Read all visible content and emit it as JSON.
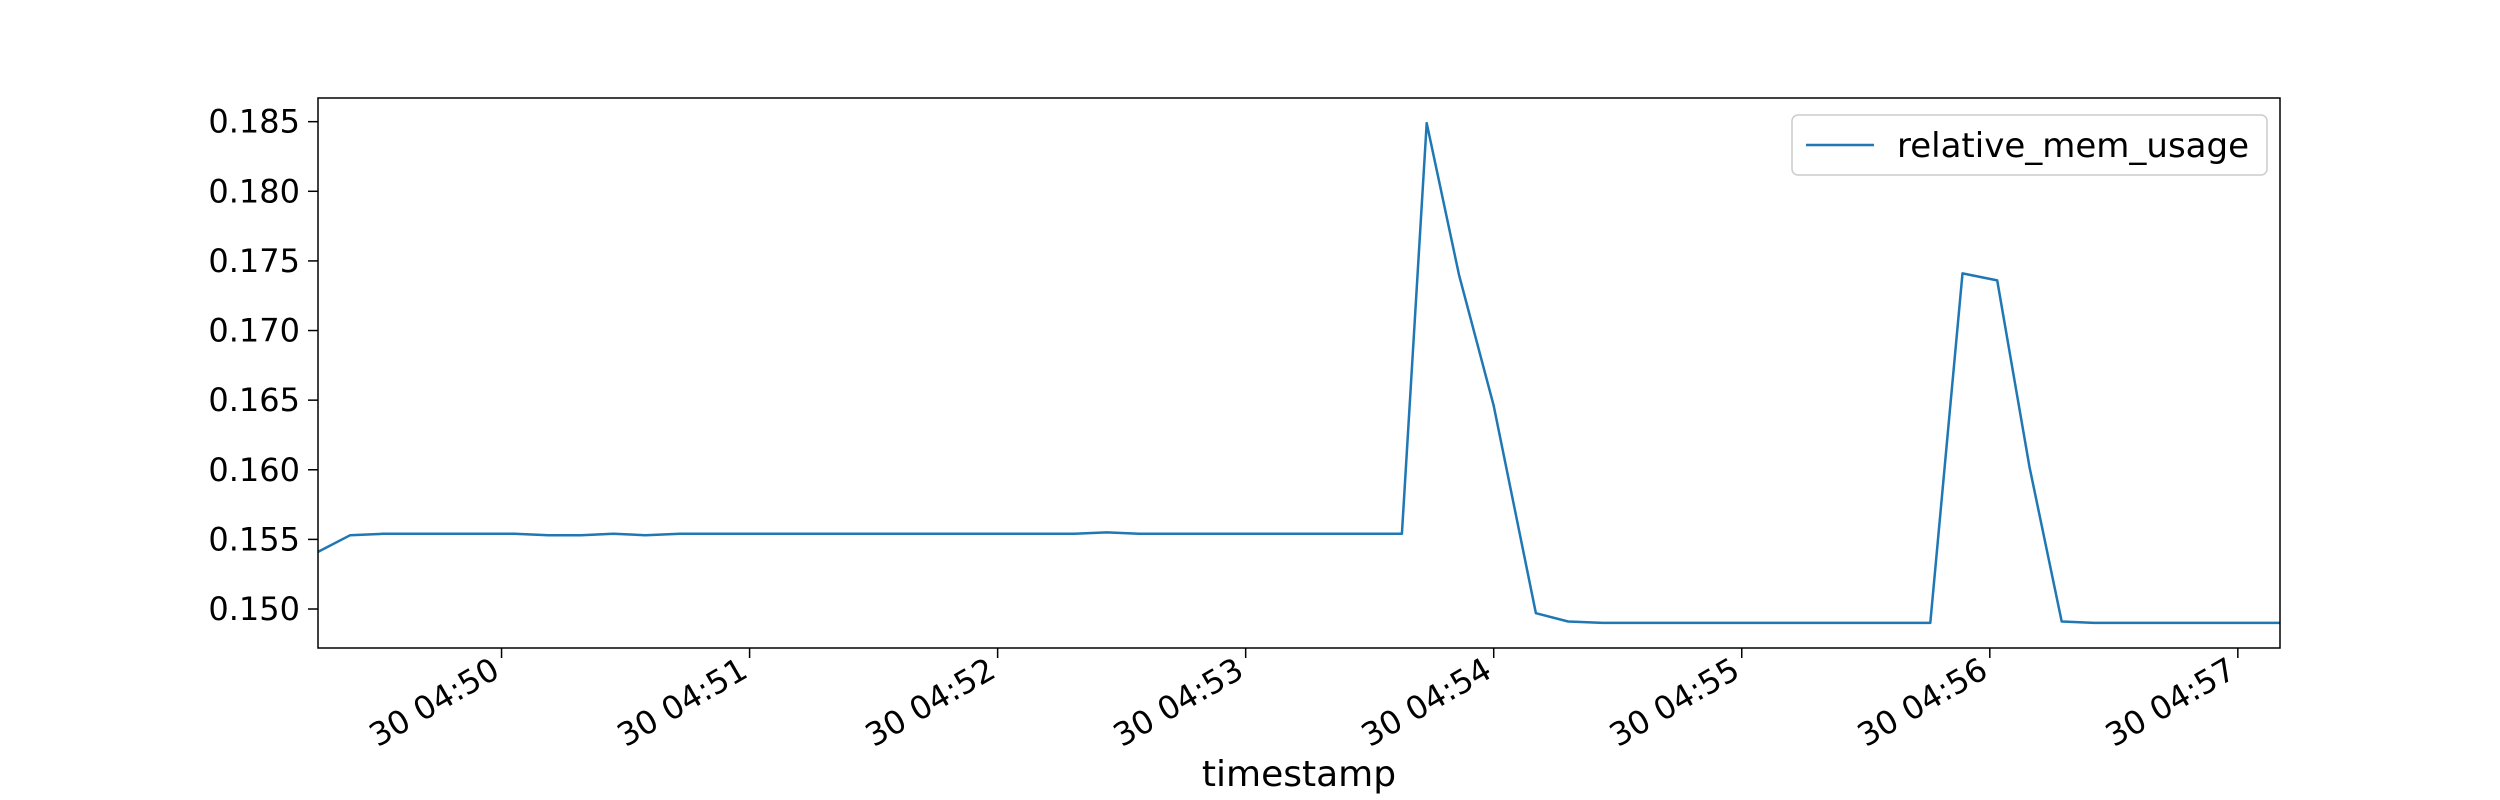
{
  "chart_data": {
    "type": "line",
    "title": "",
    "xlabel": "timestamp",
    "ylabel": "",
    "grid": false,
    "legend_placement": "top-right",
    "x_tick_values": [
      1,
      2,
      3,
      4,
      5,
      6,
      7,
      8
    ],
    "x_tick_labels": [
      "30 04:50",
      "30 04:51",
      "30 04:52",
      "30 04:53",
      "30 04:54",
      "30 04:55",
      "30 04:56",
      "30 04:57"
    ],
    "y_tick_values": [
      0.15,
      0.155,
      0.16,
      0.165,
      0.17,
      0.175,
      0.18,
      0.185
    ],
    "y_tick_labels": [
      "0.150",
      "0.155",
      "0.160",
      "0.165",
      "0.170",
      "0.175",
      "0.180",
      "0.185"
    ],
    "xlim": [
      0.26,
      8.17
    ],
    "ylim": [
      0.1472,
      0.1867
    ],
    "series": [
      {
        "name": "relative_mem_usage",
        "color": "#1f77b4",
        "x": [
          0.26,
          0.39,
          0.52,
          0.66,
          0.79,
          0.92,
          1.05,
          1.19,
          1.32,
          1.45,
          1.58,
          1.72,
          1.85,
          1.98,
          2.11,
          2.25,
          2.38,
          2.51,
          2.64,
          2.78,
          2.91,
          3.04,
          3.17,
          3.31,
          3.44,
          3.57,
          3.7,
          3.84,
          3.97,
          4.1,
          4.23,
          4.37,
          4.5,
          4.63,
          4.73,
          4.86,
          5.0,
          5.17,
          5.3,
          5.44,
          5.57,
          5.7,
          5.83,
          5.97,
          6.1,
          6.23,
          6.36,
          6.5,
          6.63,
          6.76,
          6.89,
          7.03,
          7.16,
          7.29,
          7.42,
          7.56,
          7.69,
          7.82,
          7.95,
          8.09,
          8.17
        ],
        "y": [
          0.1541,
          0.1553,
          0.1554,
          0.1554,
          0.1554,
          0.1554,
          0.1554,
          0.1553,
          0.1553,
          0.1554,
          0.1553,
          0.1554,
          0.1554,
          0.1554,
          0.1554,
          0.1554,
          0.1554,
          0.1554,
          0.1554,
          0.1554,
          0.1554,
          0.1554,
          0.1554,
          0.1554,
          0.1555,
          0.1554,
          0.1554,
          0.1554,
          0.1554,
          0.1554,
          0.1554,
          0.1554,
          0.1554,
          0.1554,
          0.1849,
          0.174,
          0.1646,
          0.1497,
          0.1491,
          0.149,
          0.149,
          0.149,
          0.149,
          0.149,
          0.149,
          0.149,
          0.149,
          0.149,
          0.149,
          0.149,
          0.1741,
          0.1736,
          0.1602,
          0.1491,
          0.149,
          0.149,
          0.149,
          0.149,
          0.149,
          0.149,
          0.149
        ]
      }
    ]
  }
}
